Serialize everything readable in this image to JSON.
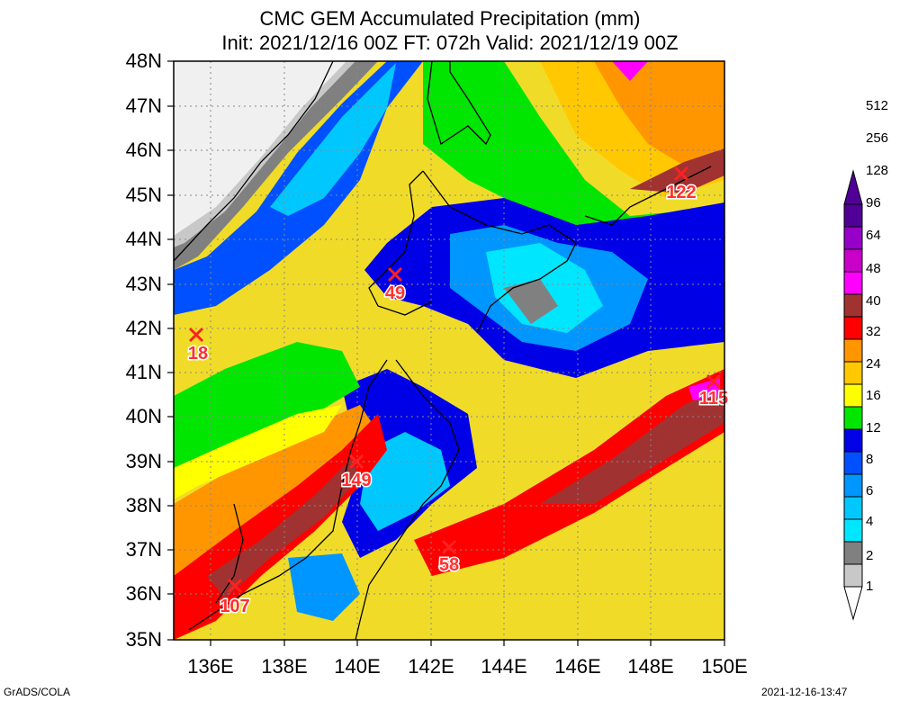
{
  "title": "CMC GEM Accumulated Precipitation (mm)",
  "subtitle": "Init: 2021/12/16 00Z  FT: 072h  Valid: 2021/12/19 00Z",
  "footer_left": "GrADS/COLA",
  "footer_right": "2021-12-16-13:47",
  "y_ticks": [
    "35N",
    "36N",
    "37N",
    "38N",
    "39N",
    "40N",
    "41N",
    "42N",
    "43N",
    "44N",
    "45N",
    "46N",
    "47N",
    "48N"
  ],
  "x_ticks": [
    "136E",
    "138E",
    "140E",
    "142E",
    "144E",
    "146E",
    "148E",
    "150E"
  ],
  "colorbar": {
    "labels": [
      "1",
      "2",
      "4",
      "6",
      "8",
      "12",
      "16",
      "24",
      "32",
      "40",
      "48",
      "64",
      "96",
      "128",
      "256",
      "512"
    ],
    "colors": [
      "#ffffff",
      "#c8c8c8",
      "#808080",
      "#00e6ff",
      "#00c8ff",
      "#0096ff",
      "#0050ff",
      "#0000e6",
      "#00e600",
      "#ffff00",
      "#ffc800",
      "#ff9600",
      "#ff0000",
      "#a03232",
      "#ff00ff",
      "#c800c8",
      "#9600c8",
      "#500096"
    ]
  },
  "chart_data": {
    "type": "heatmap",
    "title": "CMC GEM Accumulated Precipitation (mm)",
    "xlim": [
      135,
      150
    ],
    "ylim": [
      35,
      48
    ],
    "point_maxima": [
      {
        "label": "18",
        "lon": 135.6,
        "lat": 41.9
      },
      {
        "label": "49",
        "lon": 141.0,
        "lat": 43.2
      },
      {
        "label": "122",
        "lon": 148.8,
        "lat": 45.5
      },
      {
        "label": "115",
        "lon": 149.7,
        "lat": 40.8
      },
      {
        "label": "149",
        "lon": 139.9,
        "lat": 39.0
      },
      {
        "label": "58",
        "lon": 142.5,
        "lat": 37.1
      },
      {
        "label": "107",
        "lon": 136.7,
        "lat": 36.2
      }
    ]
  }
}
